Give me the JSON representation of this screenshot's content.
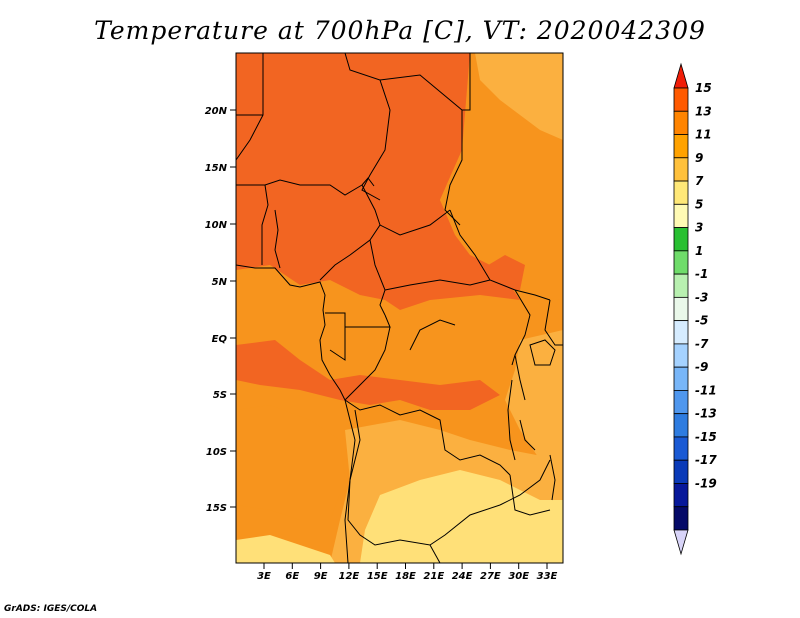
{
  "title": "Temperature at 700hPa [C], VT: 2020042309",
  "credit": "GrADS: IGES/COLA",
  "map": {
    "lat_labels": [
      "20N",
      "15N",
      "10N",
      "5N",
      "EQ",
      "5S",
      "10S",
      "15S"
    ],
    "lon_labels": [
      "3E",
      "6E",
      "9E",
      "12E",
      "15E",
      "18E",
      "21E",
      "24E",
      "27E",
      "30E",
      "33E"
    ]
  },
  "colorbar": {
    "labels": [
      "15",
      "13",
      "11",
      "9",
      "7",
      "5",
      "3",
      "1",
      "-1",
      "-3",
      "-5",
      "-7",
      "-9",
      "-11",
      "-13",
      "-15",
      "-17",
      "-19"
    ],
    "colors": [
      "#f01d08",
      "#ff5a00",
      "#ff8400",
      "#ffa200",
      "#ffc13c",
      "#ffe878",
      "#fffab4",
      "#29c032",
      "#6fdc6a",
      "#b8f0b0",
      "#eaf8ea",
      "#d6ecff",
      "#a5d2ff",
      "#78b6f8",
      "#4f97ee",
      "#2e7ce0",
      "#1a5ad4",
      "#0a3ab8",
      "#07189a",
      "#050a68",
      "#d8d4f8"
    ]
  },
  "colors": {
    "hot": "#f26522",
    "warm": "#f7941d",
    "mild": "#fbb040",
    "cool": "#ffe078",
    "border": "#000000"
  }
}
